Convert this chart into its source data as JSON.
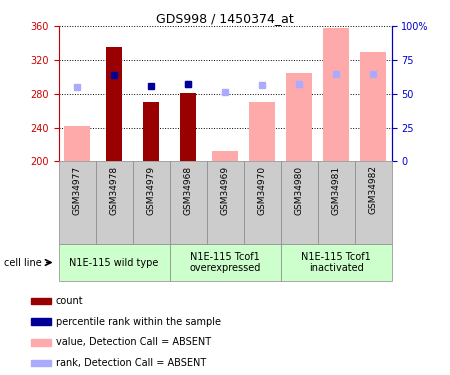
{
  "title": "GDS998 / 1450374_at",
  "samples": [
    "GSM34977",
    "GSM34978",
    "GSM34979",
    "GSM34968",
    "GSM34969",
    "GSM34970",
    "GSM34980",
    "GSM34981",
    "GSM34982"
  ],
  "count_values": [
    null,
    335,
    270,
    281,
    null,
    null,
    null,
    null,
    null
  ],
  "percentile_values": [
    null,
    302,
    289,
    291,
    null,
    null,
    null,
    null,
    null
  ],
  "absent_value_bars": [
    242,
    null,
    null,
    null,
    212,
    270,
    304,
    358,
    330
  ],
  "absent_rank_dots": [
    288,
    null,
    null,
    292,
    282,
    290,
    291,
    304,
    304
  ],
  "ylim_left": [
    200,
    360
  ],
  "ylim_right": [
    0,
    100
  ],
  "left_ticks": [
    200,
    240,
    280,
    320,
    360
  ],
  "right_ticks": [
    0,
    25,
    50,
    75,
    100
  ],
  "right_tick_labels": [
    "0",
    "25",
    "50",
    "75",
    "100%"
  ],
  "color_count": "#990000",
  "color_percentile": "#000099",
  "color_absent_value": "#ffaaaa",
  "color_absent_rank": "#aaaaff",
  "axis_color_left": "#cc0000",
  "axis_color_right": "#0000cc",
  "group_bg": "#ccffcc",
  "sample_bg": "#cccccc",
  "groups": [
    {
      "label": "N1E-115 wild type",
      "cols": [
        0,
        1,
        2
      ]
    },
    {
      "label": "N1E-115 Tcof1\noverexpressed",
      "cols": [
        3,
        4,
        5
      ]
    },
    {
      "label": "N1E-115 Tcof1\ninactivated",
      "cols": [
        6,
        7,
        8
      ]
    }
  ],
  "legend_items": [
    {
      "label": "count",
      "color": "#990000"
    },
    {
      "label": "percentile rank within the sample",
      "color": "#000099"
    },
    {
      "label": "value, Detection Call = ABSENT",
      "color": "#ffaaaa"
    },
    {
      "label": "rank, Detection Call = ABSENT",
      "color": "#aaaaff"
    }
  ],
  "cell_line_label": "cell line"
}
